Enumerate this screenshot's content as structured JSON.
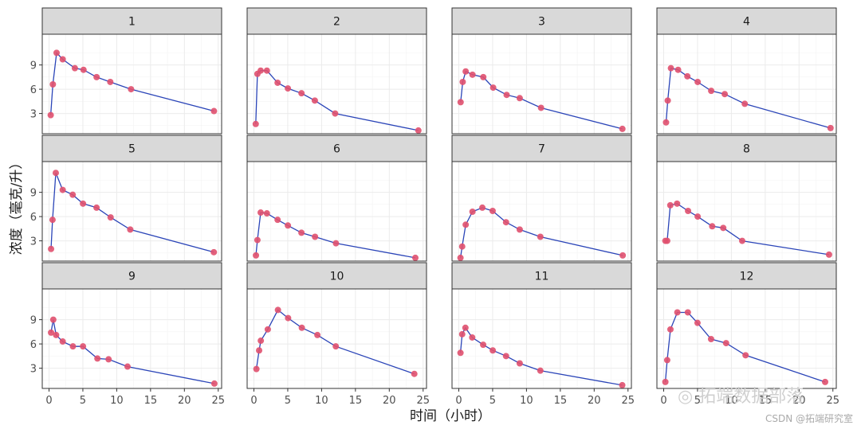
{
  "chart_data": {
    "type": "line",
    "xlabel": "时间（小时）",
    "ylabel": "浓度（毫克/升）",
    "xlim": [
      -1,
      25.5
    ],
    "ylim": [
      0.5,
      12.8
    ],
    "xticks": [
      0,
      5,
      10,
      15,
      20,
      25
    ],
    "yticks": [
      3,
      6,
      9
    ],
    "grid": true,
    "facet_layout": "3x4",
    "colors": {
      "line": "#2b45b8",
      "point": "#e0506e",
      "strip": "#d9d9d9",
      "grid": "#ebebeb"
    },
    "panels": [
      {
        "label": "1",
        "x": [
          0.25,
          0.57,
          1.12,
          2.02,
          3.82,
          5.1,
          7.03,
          9.05,
          12.12,
          24.37
        ],
        "y": [
          2.8,
          6.6,
          10.5,
          9.7,
          8.6,
          8.4,
          7.5,
          6.9,
          6.0,
          3.3
        ]
      },
      {
        "label": "2",
        "x": [
          0.27,
          0.52,
          1.0,
          1.92,
          3.5,
          5.02,
          7.03,
          9.0,
          12.0,
          24.3
        ],
        "y": [
          1.7,
          7.9,
          8.3,
          8.3,
          6.8,
          6.1,
          5.5,
          4.6,
          3.0,
          0.9
        ]
      },
      {
        "label": "3",
        "x": [
          0.27,
          0.58,
          1.02,
          2.02,
          3.62,
          5.08,
          7.07,
          9.0,
          12.15,
          24.17
        ],
        "y": [
          4.4,
          6.9,
          8.2,
          7.8,
          7.5,
          6.2,
          5.3,
          4.9,
          3.7,
          1.1
        ]
      },
      {
        "label": "4",
        "x": [
          0.35,
          0.6,
          1.07,
          2.13,
          3.5,
          5.02,
          7.02,
          9.02,
          11.98,
          24.65
        ],
        "y": [
          1.9,
          4.6,
          8.6,
          8.4,
          7.6,
          6.9,
          5.8,
          5.4,
          4.2,
          1.2
        ]
      },
      {
        "label": "5",
        "x": [
          0.3,
          0.52,
          1.0,
          2.02,
          3.5,
          5.02,
          7.02,
          9.1,
          12.0,
          24.35
        ],
        "y": [
          2.0,
          5.6,
          11.4,
          9.3,
          8.7,
          7.6,
          7.1,
          5.9,
          4.4,
          1.6
        ]
      },
      {
        "label": "6",
        "x": [
          0.3,
          0.52,
          1.0,
          1.92,
          3.5,
          5.02,
          7.02,
          9.03,
          12.12,
          23.85
        ],
        "y": [
          1.2,
          3.1,
          6.5,
          6.4,
          5.6,
          4.9,
          4.0,
          3.5,
          2.7,
          0.9
        ]
      },
      {
        "label": "7",
        "x": [
          0.25,
          0.5,
          1.02,
          2.02,
          3.48,
          5.0,
          6.98,
          9.0,
          12.05,
          24.22
        ],
        "y": [
          0.9,
          2.3,
          5.0,
          6.6,
          7.1,
          6.7,
          5.3,
          4.4,
          3.5,
          1.2
        ]
      },
      {
        "label": "8",
        "x": [
          0.25,
          0.52,
          0.98,
          1.98,
          3.6,
          5.02,
          7.17,
          8.8,
          11.6,
          24.43
        ],
        "y": [
          3.0,
          3.0,
          7.4,
          7.6,
          6.7,
          6.0,
          4.8,
          4.6,
          3.0,
          1.3
        ]
      },
      {
        "label": "9",
        "x": [
          0.3,
          0.63,
          1.05,
          2.02,
          3.53,
          5.02,
          7.15,
          8.8,
          11.6,
          24.43
        ],
        "y": [
          7.4,
          9.0,
          7.1,
          6.3,
          5.7,
          5.7,
          4.2,
          4.1,
          3.2,
          1.1
        ]
      },
      {
        "label": "10",
        "x": [
          0.37,
          0.77,
          1.02,
          2.05,
          3.55,
          5.05,
          7.08,
          9.38,
          12.1,
          23.7
        ],
        "y": [
          2.9,
          5.2,
          6.4,
          7.8,
          10.2,
          9.2,
          8.0,
          7.1,
          5.7,
          2.3
        ]
      },
      {
        "label": "11",
        "x": [
          0.25,
          0.5,
          0.98,
          1.98,
          3.6,
          5.02,
          6.98,
          9.0,
          12.05,
          24.15
        ],
        "y": [
          4.9,
          7.2,
          8.0,
          6.8,
          5.9,
          5.2,
          4.5,
          3.6,
          2.7,
          0.9
        ]
      },
      {
        "label": "12",
        "x": [
          0.25,
          0.52,
          1.0,
          2.02,
          3.57,
          5.0,
          7.0,
          9.22,
          12.1,
          23.85
        ],
        "y": [
          1.3,
          4.0,
          7.8,
          9.9,
          9.9,
          8.6,
          6.6,
          6.1,
          4.6,
          1.3
        ]
      }
    ]
  },
  "watermarks": {
    "logo_text": "拓端数据部落",
    "csdn_text": "CSDN @拓端研究室"
  }
}
